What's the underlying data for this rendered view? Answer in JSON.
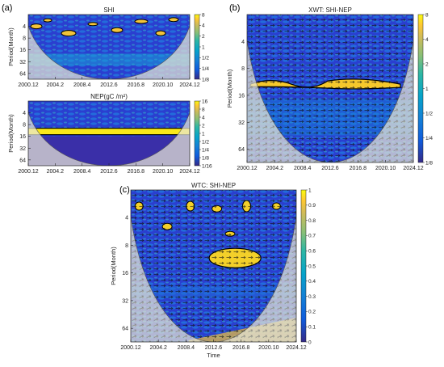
{
  "figure": {
    "panel_labels": [
      "(a)",
      "(b)",
      "(c)"
    ]
  },
  "chart_data": [
    {
      "type": "heatmap",
      "id": "shi",
      "title": "SHI",
      "ylabel": "Period(Month)",
      "xlabel": "",
      "x_ticks": [
        "2000.12",
        "2004.2",
        "2008.4",
        "2012.6",
        "2016.8",
        "2020.10",
        "2024.12"
      ],
      "y_ticks": [
        "4",
        "8",
        "16",
        "32",
        "64"
      ],
      "y_range": [
        2,
        90
      ],
      "y_scale": "log2",
      "colorbar_ticks": [
        "8",
        "4",
        "2",
        "1",
        "1/2",
        "1/4",
        "1/8"
      ],
      "colormap": "parula",
      "cone_of_influence": true,
      "arrows": false
    },
    {
      "type": "heatmap",
      "id": "nep",
      "title": "NEP(gC /m²)",
      "ylabel": "Period(Month)",
      "xlabel": "",
      "x_ticks": [
        "2000.12",
        "2004.2",
        "2008.4",
        "2012.6",
        "2016.8",
        "2020.10",
        "2024.12"
      ],
      "y_ticks": [
        "4",
        "8",
        "16",
        "32",
        "64"
      ],
      "y_range": [
        2,
        90
      ],
      "y_scale": "log2",
      "colorbar_ticks": [
        "16",
        "8",
        "4",
        "2",
        "1",
        "1/2",
        "1/4",
        "1/8",
        "1/16"
      ],
      "colormap": "parula",
      "cone_of_influence": true,
      "arrows": false,
      "dominant_band_period": 12
    },
    {
      "type": "heatmap",
      "id": "xwt",
      "title": "XWT: SHI-NEP",
      "ylabel": "Period(Month)",
      "xlabel": "",
      "x_ticks": [
        "2000.12",
        "2004.2",
        "2008.4",
        "2012.6",
        "2016.8",
        "2020.10",
        "2024.12"
      ],
      "y_ticks": [
        "4",
        "8",
        "16",
        "32",
        "64"
      ],
      "y_range": [
        2,
        90
      ],
      "y_scale": "log2",
      "colorbar_ticks": [
        "8",
        "4",
        "2",
        "1",
        "1/2",
        "1/4",
        "1/8"
      ],
      "colormap": "parula",
      "cone_of_influence": true,
      "arrows": true,
      "dominant_band_period": 12
    },
    {
      "type": "heatmap",
      "id": "wtc",
      "title": "WTC: SHI-NEP",
      "ylabel": "Period(Month)",
      "xlabel": "Time",
      "x_ticks": [
        "2000.12",
        "2004.2",
        "2008.4",
        "2012.6",
        "2016.8",
        "2020.10",
        "2024.12"
      ],
      "y_ticks": [
        "4",
        "8",
        "16",
        "32",
        "64"
      ],
      "y_range": [
        2,
        90
      ],
      "y_scale": "log2",
      "colorbar_ticks": [
        "1",
        "0.9",
        "0.8",
        "0.7",
        "0.6",
        "0.5",
        "0.4",
        "0.3",
        "0.2",
        "0.1",
        "0"
      ],
      "colorbar_range": [
        0,
        1
      ],
      "colormap": "parula",
      "cone_of_influence": true,
      "arrows": true
    }
  ]
}
